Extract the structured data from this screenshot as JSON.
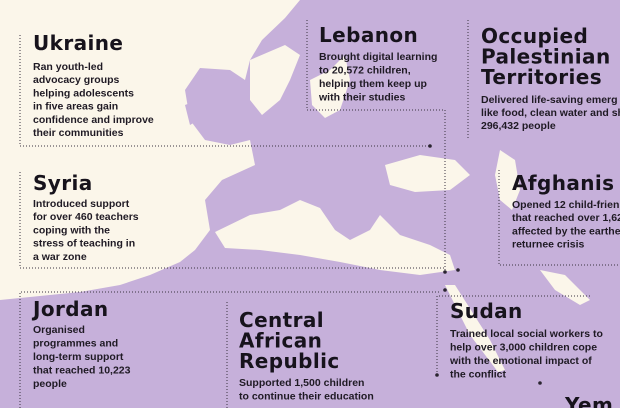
{
  "entries": [
    {
      "title": [
        "Ukraine"
      ],
      "text": [
        "Ran youth-led",
        "advocacy groups",
        "helping adolescents",
        "in five areas gain",
        "confidence and improve",
        "their communities"
      ]
    },
    {
      "title": [
        "Lebanon"
      ],
      "text": [
        "Brought digital learning",
        "to 20,572 children,",
        "helping them keep up",
        "with their studies"
      ]
    },
    {
      "title": [
        "Occupied",
        "Palestinian",
        "Territories"
      ],
      "text": [
        "Delivered life-saving emerg",
        "like food, clean water and sh",
        "296,432 people"
      ]
    },
    {
      "title": [
        "Syria"
      ],
      "text": [
        "Introduced support",
        "for over 460 teachers",
        "coping with the",
        "stress of teaching in",
        "a war zone"
      ]
    },
    {
      "title": [
        "Afghanis"
      ],
      "text": [
        "Opened 12 child-frien",
        "that reached over 1,62",
        "affected by the earthe",
        "returnee crisis"
      ]
    },
    {
      "title": [
        "Jordan"
      ],
      "text": [
        "Organised",
        "programmes and",
        "long-term support",
        "that reached 10,223",
        "people"
      ]
    },
    {
      "title": [
        "Central",
        "African",
        "Republic"
      ],
      "text": [
        "Supported 1,500 children",
        "to continue their education"
      ]
    },
    {
      "title": [
        "Sudan"
      ],
      "text": [
        "Trained local social workers to",
        "help over 3,000 children cope",
        "with the emotional impact of",
        "the conflict"
      ]
    },
    {
      "title": [
        "Yem"
      ],
      "text": []
    }
  ]
}
